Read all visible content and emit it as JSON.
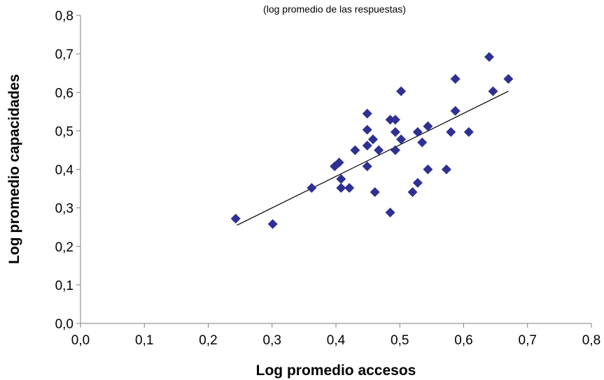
{
  "chart_data": {
    "type": "scatter",
    "subtitle": "(log promedio de las respuestas)",
    "xlabel": "Log promedio accesos",
    "ylabel": "Log promedio capacidades",
    "xlim": [
      0,
      0.8
    ],
    "ylim": [
      0,
      0.8
    ],
    "x_ticks": [
      "0,0",
      "0,1",
      "0,2",
      "0,3",
      "0,4",
      "0,5",
      "0,6",
      "0,7",
      "0,8"
    ],
    "y_ticks": [
      "0,0",
      "0,1",
      "0,2",
      "0,3",
      "0,4",
      "0,5",
      "0,6",
      "0,7",
      "0,8"
    ],
    "grid": false,
    "marker_color": "#2E3192",
    "trendline": {
      "x0": 0.245,
      "y0": 0.255,
      "x1": 0.67,
      "y1": 0.603
    },
    "points": [
      {
        "x": 0.243,
        "y": 0.272
      },
      {
        "x": 0.301,
        "y": 0.258
      },
      {
        "x": 0.362,
        "y": 0.352
      },
      {
        "x": 0.398,
        "y": 0.408
      },
      {
        "x": 0.405,
        "y": 0.418
      },
      {
        "x": 0.408,
        "y": 0.375
      },
      {
        "x": 0.408,
        "y": 0.352
      },
      {
        "x": 0.421,
        "y": 0.352
      },
      {
        "x": 0.43,
        "y": 0.45
      },
      {
        "x": 0.449,
        "y": 0.545
      },
      {
        "x": 0.449,
        "y": 0.503
      },
      {
        "x": 0.449,
        "y": 0.462
      },
      {
        "x": 0.449,
        "y": 0.408
      },
      {
        "x": 0.458,
        "y": 0.478
      },
      {
        "x": 0.461,
        "y": 0.341
      },
      {
        "x": 0.467,
        "y": 0.45
      },
      {
        "x": 0.485,
        "y": 0.529
      },
      {
        "x": 0.485,
        "y": 0.288
      },
      {
        "x": 0.493,
        "y": 0.529
      },
      {
        "x": 0.493,
        "y": 0.497
      },
      {
        "x": 0.493,
        "y": 0.45
      },
      {
        "x": 0.502,
        "y": 0.603
      },
      {
        "x": 0.502,
        "y": 0.478
      },
      {
        "x": 0.52,
        "y": 0.341
      },
      {
        "x": 0.528,
        "y": 0.497
      },
      {
        "x": 0.528,
        "y": 0.365
      },
      {
        "x": 0.535,
        "y": 0.47
      },
      {
        "x": 0.544,
        "y": 0.512
      },
      {
        "x": 0.544,
        "y": 0.4
      },
      {
        "x": 0.573,
        "y": 0.4
      },
      {
        "x": 0.58,
        "y": 0.497
      },
      {
        "x": 0.587,
        "y": 0.635
      },
      {
        "x": 0.587,
        "y": 0.552
      },
      {
        "x": 0.608,
        "y": 0.497
      },
      {
        "x": 0.64,
        "y": 0.692
      },
      {
        "x": 0.646,
        "y": 0.603
      },
      {
        "x": 0.67,
        "y": 0.635
      }
    ]
  }
}
